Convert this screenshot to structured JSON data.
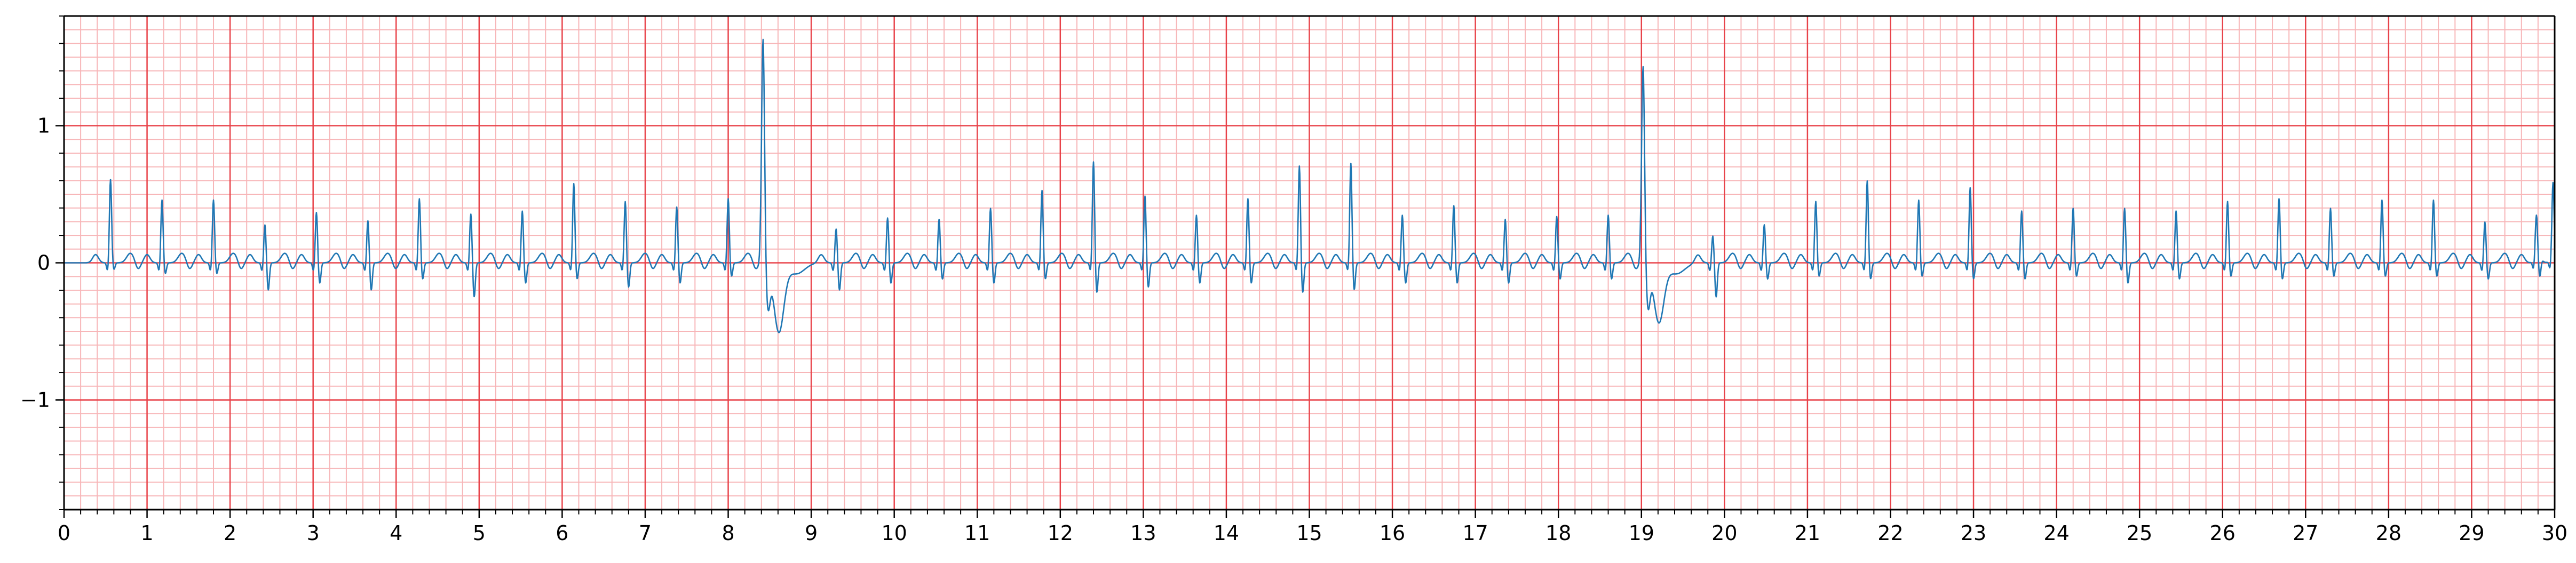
{
  "colors": {
    "major_grid": "#e8434a",
    "minor_grid": "#f7b6b8",
    "trace": "#1f77b4",
    "axis": "#000000",
    "background": "#ffffff"
  },
  "chart_data": {
    "type": "line",
    "title": "",
    "xlabel": "",
    "ylabel": "",
    "xlim": [
      0,
      30
    ],
    "ylim": [
      -1.8,
      1.8
    ],
    "grid": true,
    "grid_style": "ecg paper: major every 1 s and 1 mV, minor every 0.2 s and 0.1 mV",
    "x_ticks": [
      0,
      1,
      2,
      3,
      4,
      5,
      6,
      7,
      8,
      9,
      10,
      11,
      12,
      13,
      14,
      15,
      16,
      17,
      18,
      19,
      20,
      21,
      22,
      23,
      24,
      25,
      26,
      27,
      28,
      29,
      30
    ],
    "x_tick_labels": [
      "0",
      "1",
      "2",
      "3",
      "4",
      "5",
      "6",
      "7",
      "8",
      "9",
      "10",
      "11",
      "12",
      "13",
      "14",
      "15",
      "16",
      "17",
      "18",
      "19",
      "20",
      "21",
      "22",
      "23",
      "24",
      "25",
      "26",
      "27",
      "28",
      "29",
      "30"
    ],
    "y_ticks": [
      -1,
      0,
      1
    ],
    "y_tick_labels": [
      "−1",
      "0",
      "1"
    ],
    "series": [
      {
        "baseline": 0.0,
        "beats": [
          {
            "t": 0.56,
            "r": 0.61,
            "s": -0.05
          },
          {
            "t": 1.18,
            "r": 0.46,
            "s": -0.08
          },
          {
            "t": 1.8,
            "r": 0.46,
            "s": -0.08
          },
          {
            "t": 2.42,
            "r": 0.28,
            "s": -0.2
          },
          {
            "t": 3.04,
            "r": 0.37,
            "s": -0.15
          },
          {
            "t": 3.66,
            "r": 0.31,
            "s": -0.2
          },
          {
            "t": 4.28,
            "r": 0.47,
            "s": -0.12
          },
          {
            "t": 4.9,
            "r": 0.36,
            "s": -0.25
          },
          {
            "t": 5.52,
            "r": 0.38,
            "s": -0.15
          },
          {
            "t": 6.14,
            "r": 0.58,
            "s": -0.12
          },
          {
            "t": 6.76,
            "r": 0.45,
            "s": -0.18
          },
          {
            "t": 7.38,
            "r": 0.41,
            "s": -0.15
          },
          {
            "t": 8.0,
            "r": 0.47,
            "s": -0.1
          },
          {
            "t": 8.42,
            "r": 1.65,
            "s": -0.5,
            "type": "pvc"
          },
          {
            "t": 9.3,
            "r": 0.25,
            "s": -0.2
          },
          {
            "t": 9.92,
            "r": 0.33,
            "s": -0.15
          },
          {
            "t": 10.54,
            "r": 0.32,
            "s": -0.12
          },
          {
            "t": 11.16,
            "r": 0.4,
            "s": -0.15
          },
          {
            "t": 11.78,
            "r": 0.53,
            "s": -0.12
          },
          {
            "t": 12.4,
            "r": 0.74,
            "s": -0.22
          },
          {
            "t": 13.02,
            "r": 0.49,
            "s": -0.18
          },
          {
            "t": 13.64,
            "r": 0.35,
            "s": -0.15
          },
          {
            "t": 14.26,
            "r": 0.47,
            "s": -0.15
          },
          {
            "t": 14.88,
            "r": 0.71,
            "s": -0.22
          },
          {
            "t": 15.5,
            "r": 0.73,
            "s": -0.2
          },
          {
            "t": 16.12,
            "r": 0.35,
            "s": -0.15
          },
          {
            "t": 16.74,
            "r": 0.42,
            "s": -0.15
          },
          {
            "t": 17.36,
            "r": 0.32,
            "s": -0.15
          },
          {
            "t": 17.98,
            "r": 0.34,
            "s": -0.12
          },
          {
            "t": 18.6,
            "r": 0.35,
            "s": -0.12
          },
          {
            "t": 19.02,
            "r": 1.45,
            "s": -0.43,
            "type": "pvc"
          },
          {
            "t": 19.86,
            "r": 0.2,
            "s": -0.25
          },
          {
            "t": 20.48,
            "r": 0.28,
            "s": -0.12
          },
          {
            "t": 21.1,
            "r": 0.45,
            "s": -0.1
          },
          {
            "t": 21.72,
            "r": 0.6,
            "s": -0.12
          },
          {
            "t": 22.34,
            "r": 0.46,
            "s": -0.1
          },
          {
            "t": 22.96,
            "r": 0.55,
            "s": -0.12
          },
          {
            "t": 23.58,
            "r": 0.38,
            "s": -0.12
          },
          {
            "t": 24.2,
            "r": 0.4,
            "s": -0.1
          },
          {
            "t": 24.82,
            "r": 0.4,
            "s": -0.15
          },
          {
            "t": 25.44,
            "r": 0.38,
            "s": -0.12
          },
          {
            "t": 26.06,
            "r": 0.45,
            "s": -0.1
          },
          {
            "t": 26.68,
            "r": 0.47,
            "s": -0.12
          },
          {
            "t": 27.3,
            "r": 0.4,
            "s": -0.1
          },
          {
            "t": 27.92,
            "r": 0.46,
            "s": -0.1
          },
          {
            "t": 28.54,
            "r": 0.46,
            "s": -0.1
          },
          {
            "t": 29.16,
            "r": 0.3,
            "s": -0.12
          },
          {
            "t": 29.78,
            "r": 0.3,
            "s": -0.15
          },
          {
            "t": 29.98,
            "r": 0.54,
            "s": -0.05
          }
        ]
      }
    ]
  }
}
